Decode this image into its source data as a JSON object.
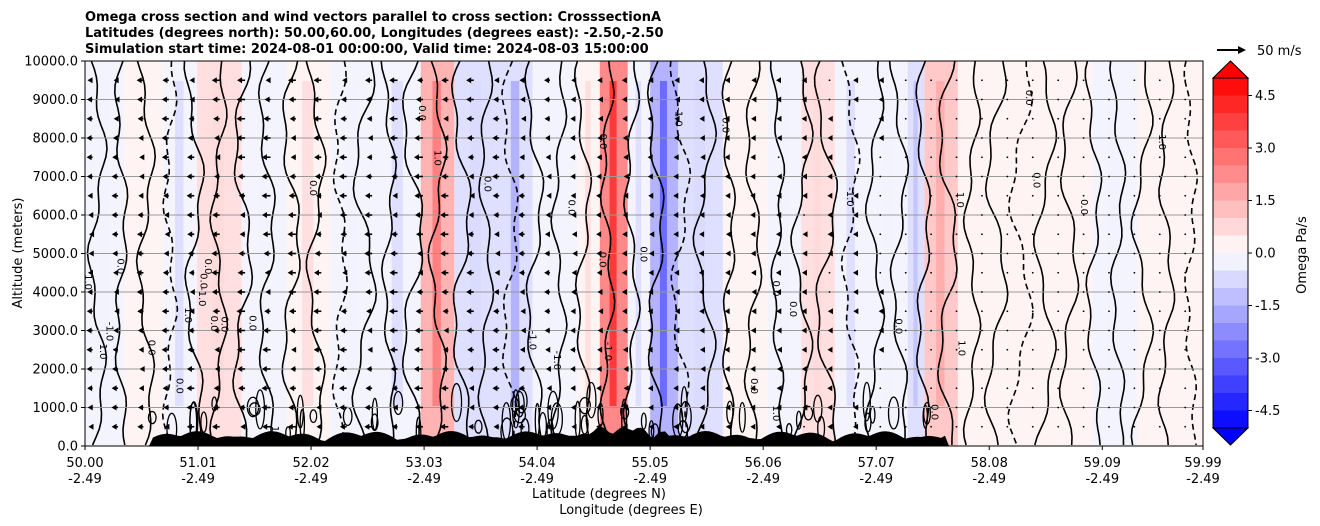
{
  "chart_data": {
    "type": "heatmap",
    "title_lines": [
      "Omega cross section and wind vectors parallel to cross section: CrosssectionA",
      "Latitudes (degrees north): 50.00,60.00, Longitudes (degrees east): -2.50,-2.50",
      "Simulation start time: 2024-08-01 00:00:00, Valid time: 2024-08-03 15:00:00"
    ],
    "ylabel": "Altitude (meters)",
    "xlabel_lines": [
      "Latitude (degrees N)",
      "Longitude (degrees E)"
    ],
    "ylim": [
      0,
      10000
    ],
    "xlim": [
      50.0,
      59.99
    ],
    "y_ticks": [
      "0.0",
      "1000.0",
      "2000.0",
      "3000.0",
      "4000.0",
      "5000.0",
      "6000.0",
      "7000.0",
      "8000.0",
      "9000.0",
      "10000.0"
    ],
    "x_ticks": [
      {
        "lat": "50.00",
        "lon": "-2.49"
      },
      {
        "lat": "51.01",
        "lon": "-2.49"
      },
      {
        "lat": "52.02",
        "lon": "-2.49"
      },
      {
        "lat": "53.03",
        "lon": "-2.49"
      },
      {
        "lat": "54.04",
        "lon": "-2.49"
      },
      {
        "lat": "55.05",
        "lon": "-2.49"
      },
      {
        "lat": "56.06",
        "lon": "-2.49"
      },
      {
        "lat": "57.07",
        "lon": "-2.49"
      },
      {
        "lat": "58.08",
        "lon": "-2.49"
      },
      {
        "lat": "59.09",
        "lon": "-2.49"
      },
      {
        "lat": "59.99",
        "lon": "-2.49"
      }
    ],
    "grid": true,
    "colorbar": {
      "label": "Omega Pa/s",
      "range": [
        -5.0,
        5.0
      ],
      "ticks": [
        "4.5",
        "3.0",
        "1.5",
        "0.0",
        "-1.5",
        "-3.0",
        "-4.5"
      ],
      "levels": 20,
      "extend": "both",
      "colors": {
        "low": "#0000ff",
        "mid": "#ffffff",
        "high": "#ff0000"
      }
    },
    "vector_key": {
      "label": "50 m/s",
      "speed": 50
    },
    "omega_bands": [
      {
        "lat": 50.0,
        "omega": -0.3
      },
      {
        "lat": 50.35,
        "omega": 0.2
      },
      {
        "lat": 50.7,
        "omega": -0.4
      },
      {
        "lat": 51.0,
        "omega": 0.5
      },
      {
        "lat": 51.4,
        "omega": -0.3
      },
      {
        "lat": 51.8,
        "omega": 0.4
      },
      {
        "lat": 52.2,
        "omega": -0.3
      },
      {
        "lat": 52.6,
        "omega": -0.5
      },
      {
        "lat": 53.0,
        "omega": 1.8
      },
      {
        "lat": 53.3,
        "omega": -0.6
      },
      {
        "lat": 53.7,
        "omega": -1.0
      },
      {
        "lat": 54.0,
        "omega": -0.3
      },
      {
        "lat": 54.4,
        "omega": 0.4
      },
      {
        "lat": 54.6,
        "omega": 2.6
      },
      {
        "lat": 54.85,
        "omega": -0.4
      },
      {
        "lat": 55.05,
        "omega": -2.0
      },
      {
        "lat": 55.3,
        "omega": -0.6
      },
      {
        "lat": 55.7,
        "omega": 0.3
      },
      {
        "lat": 56.1,
        "omega": -0.3
      },
      {
        "lat": 56.4,
        "omega": 0.5
      },
      {
        "lat": 56.7,
        "omega": -0.5
      },
      {
        "lat": 57.0,
        "omega": -0.3
      },
      {
        "lat": 57.35,
        "omega": -0.7
      },
      {
        "lat": 57.5,
        "omega": 1.2
      },
      {
        "lat": 57.8,
        "omega": 0.3
      },
      {
        "lat": 58.2,
        "omega": 0.1
      },
      {
        "lat": 58.6,
        "omega": 0.2
      },
      {
        "lat": 59.0,
        "omega": -0.2
      },
      {
        "lat": 59.4,
        "omega": 0.3
      },
      {
        "lat": 59.99,
        "omega": 0.2
      }
    ],
    "contour_labels": [
      "0.0",
      "-1.0",
      "1.0",
      "2.0",
      "-2.0"
    ],
    "wind_u_ms": [
      {
        "lat": 50.0,
        "u": -8
      },
      {
        "lat": 50.9,
        "u": -10
      },
      {
        "lat": 51.6,
        "u": -12
      },
      {
        "lat": 52.4,
        "u": -10
      },
      {
        "lat": 53.0,
        "u": -12
      },
      {
        "lat": 53.5,
        "u": -10
      },
      {
        "lat": 54.1,
        "u": -8
      },
      {
        "lat": 54.7,
        "u": -6
      },
      {
        "lat": 55.3,
        "u": -5
      },
      {
        "lat": 56.0,
        "u": -4
      },
      {
        "lat": 56.6,
        "u": -3
      },
      {
        "lat": 57.2,
        "u": -2
      },
      {
        "lat": 57.8,
        "u": -1
      },
      {
        "lat": 58.5,
        "u": -0.5
      },
      {
        "lat": 59.2,
        "u": -0.5
      },
      {
        "lat": 59.99,
        "u": -0.5
      }
    ]
  }
}
